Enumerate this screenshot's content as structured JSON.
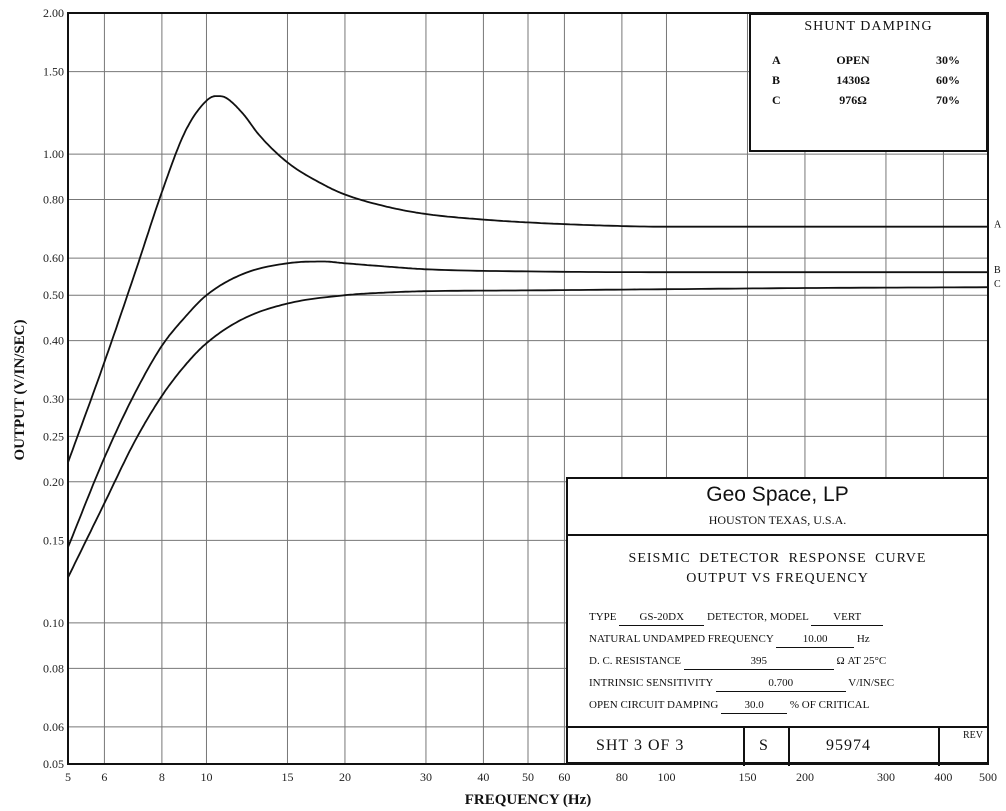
{
  "chart_data": {
    "type": "line",
    "xlabel": "FREQUENCY (Hz)",
    "ylabel": "OUTPUT (V/IN/SEC)",
    "x_scale": "log",
    "y_scale": "log",
    "xlim": [
      5,
      500
    ],
    "ylim": [
      0.05,
      2.0
    ],
    "grid": true,
    "x_ticks": [
      5,
      6,
      8,
      10,
      15,
      20,
      30,
      40,
      50,
      60,
      80,
      100,
      150,
      200,
      300,
      400,
      500
    ],
    "y_ticks": [
      0.05,
      0.06,
      0.08,
      0.1,
      0.15,
      0.2,
      0.25,
      0.3,
      0.4,
      0.5,
      0.6,
      0.8,
      1.0,
      1.5,
      2.0
    ],
    "x_tick_labels": [
      "5",
      "6",
      "8",
      "10",
      "15",
      "20",
      "30",
      "40",
      "50",
      "60",
      "80",
      "100",
      "150",
      "200",
      "300",
      "400",
      "500"
    ],
    "y_tick_labels": [
      "0.05",
      "0.06",
      "0.08",
      "0.10",
      "0.15",
      "0.20",
      "0.25",
      "0.30",
      "0.40",
      "0.50",
      "0.60",
      "0.80",
      "1.00",
      "1.50",
      "2.00"
    ],
    "series": [
      {
        "name": "A",
        "x": [
          5,
          6,
          7,
          8,
          9,
          10,
          10.5,
          11,
          12,
          13,
          15,
          18,
          20,
          25,
          30,
          40,
          50,
          70,
          100,
          150,
          200,
          300,
          500
        ],
        "y": [
          0.22,
          0.36,
          0.56,
          0.83,
          1.12,
          1.3,
          1.33,
          1.32,
          1.22,
          1.1,
          0.96,
          0.86,
          0.82,
          0.77,
          0.745,
          0.725,
          0.715,
          0.705,
          0.7,
          0.7,
          0.7,
          0.7,
          0.7
        ]
      },
      {
        "name": "B",
        "x": [
          5,
          6,
          7,
          8,
          9,
          10,
          12,
          15,
          18,
          20,
          25,
          30,
          50,
          100,
          200,
          500
        ],
        "y": [
          0.145,
          0.225,
          0.31,
          0.39,
          0.45,
          0.5,
          0.555,
          0.585,
          0.59,
          0.585,
          0.575,
          0.568,
          0.562,
          0.56,
          0.56,
          0.56
        ]
      },
      {
        "name": "C",
        "x": [
          5,
          6,
          7,
          8,
          9,
          10,
          12,
          15,
          20,
          25,
          30,
          50,
          100,
          200,
          500
        ],
        "y": [
          0.125,
          0.18,
          0.245,
          0.305,
          0.355,
          0.395,
          0.445,
          0.48,
          0.5,
          0.507,
          0.51,
          0.512,
          0.515,
          0.518,
          0.52
        ]
      }
    ]
  },
  "shunt_table": {
    "title": "SHUNT   DAMPING",
    "rows": [
      {
        "curve": "A",
        "shunt": "OPEN",
        "damping": "30%"
      },
      {
        "curve": "B",
        "shunt": "1430Ω",
        "damping": "60%"
      },
      {
        "curve": "C",
        "shunt": "976Ω",
        "damping": "70%"
      }
    ]
  },
  "title_block": {
    "company": "Geo Space, LP",
    "city": "HOUSTON TEXAS, U.S.A.",
    "title_line1": "SEISMIC DETECTOR RESPONSE CURVE",
    "title_line2": "OUTPUT VS FREQUENCY",
    "type_label": "TYPE",
    "type_value": "GS-20DX",
    "model_label": "DETECTOR, MODEL",
    "model_value": "VERT",
    "natural_freq_label": "NATURAL UNDAMPED FREQUENCY",
    "natural_freq_value": "10.00",
    "natural_freq_unit": "Hz",
    "dc_resistance_label": "D. C.  RESISTANCE",
    "dc_resistance_value": "395",
    "dc_resistance_unit": "Ω  AT 25°C",
    "sensitivity_label": "INTRINSIC  SENSITIVITY",
    "sensitivity_value": "0.700",
    "sensitivity_unit": "V/IN/SEC",
    "damping_label": "OPEN  CIRCUIT  DAMPING",
    "damping_value": "30.0",
    "damping_unit": "%  OF CRITICAL",
    "sheet_label": "SHT  3 OF  3",
    "sheet_code": "S",
    "drawing_number": "95974",
    "rev_label": "REV"
  }
}
